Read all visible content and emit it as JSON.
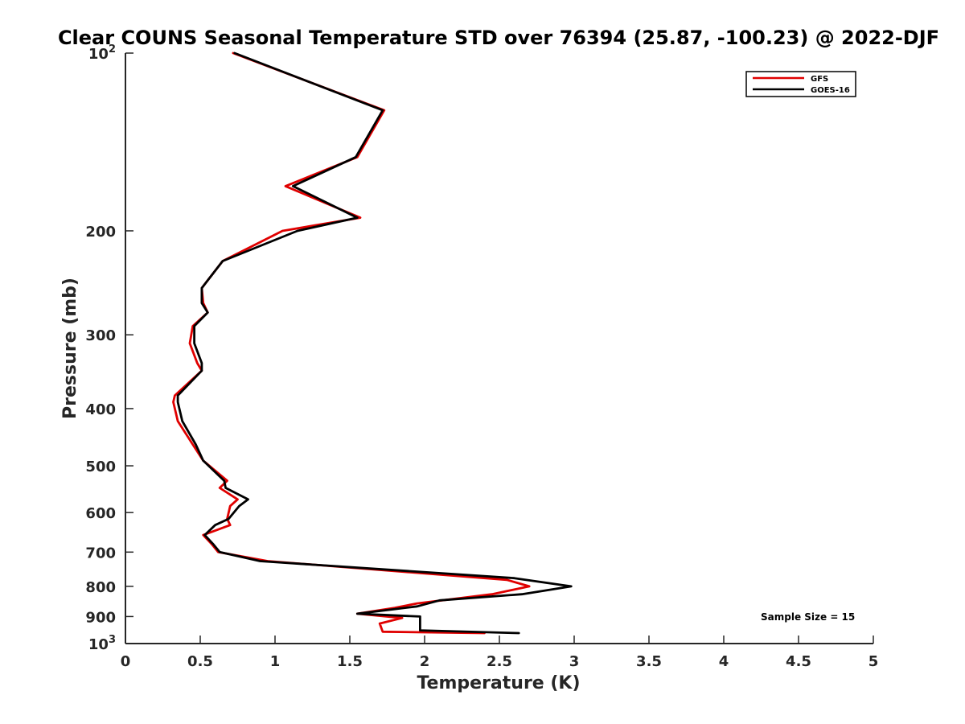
{
  "chart_data": {
    "type": "line",
    "title": "Clear COUNS Seasonal Temperature STD over 76394 (25.87, -100.23) @ 2022-DJF",
    "xlabel": "Temperature (K)",
    "ylabel": "Pressure (mb)",
    "xlim": [
      0,
      5
    ],
    "ylim": [
      100,
      1000
    ],
    "y_scale": "log",
    "y_reversed": true,
    "grid": false,
    "legend_position": "top-right",
    "x_ticks": [
      0,
      0.5,
      1,
      1.5,
      2,
      2.5,
      3,
      3.5,
      4,
      4.5,
      5
    ],
    "x_tick_labels": [
      "0",
      "0.5",
      "1",
      "1.5",
      "2",
      "2.5",
      "3",
      "3.5",
      "4",
      "4.5",
      "5"
    ],
    "y_ticks": [
      100,
      200,
      300,
      400,
      500,
      600,
      700,
      800,
      900,
      1000
    ],
    "y_tick_labels": [
      {
        "base": "10",
        "exp": "2"
      },
      {
        "base": "200",
        "exp": ""
      },
      {
        "base": "300",
        "exp": ""
      },
      {
        "base": "400",
        "exp": ""
      },
      {
        "base": "500",
        "exp": ""
      },
      {
        "base": "600",
        "exp": ""
      },
      {
        "base": "700",
        "exp": ""
      },
      {
        "base": "800",
        "exp": ""
      },
      {
        "base": "900",
        "exp": ""
      },
      {
        "base": "10",
        "exp": "3"
      }
    ],
    "series": [
      {
        "name": "GFS",
        "color": "#e00000",
        "points": [
          [
            0.72,
            100
          ],
          [
            1.73,
            125
          ],
          [
            1.55,
            150
          ],
          [
            1.07,
            168
          ],
          [
            1.57,
            190
          ],
          [
            1.05,
            200
          ],
          [
            0.65,
            225
          ],
          [
            0.51,
            250
          ],
          [
            0.52,
            265
          ],
          [
            0.55,
            275
          ],
          [
            0.45,
            290
          ],
          [
            0.43,
            310
          ],
          [
            0.48,
            335
          ],
          [
            0.51,
            345
          ],
          [
            0.33,
            380
          ],
          [
            0.32,
            390
          ],
          [
            0.35,
            420
          ],
          [
            0.45,
            460
          ],
          [
            0.52,
            490
          ],
          [
            0.68,
            530
          ],
          [
            0.63,
            545
          ],
          [
            0.75,
            570
          ],
          [
            0.7,
            585
          ],
          [
            0.68,
            615
          ],
          [
            0.7,
            630
          ],
          [
            0.52,
            655
          ],
          [
            0.58,
            680
          ],
          [
            0.62,
            700
          ],
          [
            0.95,
            725
          ],
          [
            2.55,
            780
          ],
          [
            2.7,
            800
          ],
          [
            2.45,
            825
          ],
          [
            1.95,
            855
          ],
          [
            1.8,
            870
          ],
          [
            1.55,
            890
          ],
          [
            1.85,
            905
          ],
          [
            1.7,
            925
          ],
          [
            1.72,
            955
          ],
          [
            2.4,
            960
          ]
        ]
      },
      {
        "name": "GOES-16",
        "color": "#000000",
        "points": [
          [
            0.73,
            100
          ],
          [
            1.72,
            125
          ],
          [
            1.54,
            150
          ],
          [
            1.12,
            168
          ],
          [
            1.55,
            190
          ],
          [
            1.15,
            200
          ],
          [
            0.65,
            225
          ],
          [
            0.51,
            250
          ],
          [
            0.51,
            265
          ],
          [
            0.55,
            275
          ],
          [
            0.46,
            290
          ],
          [
            0.46,
            310
          ],
          [
            0.51,
            335
          ],
          [
            0.51,
            345
          ],
          [
            0.35,
            380
          ],
          [
            0.35,
            390
          ],
          [
            0.38,
            420
          ],
          [
            0.47,
            460
          ],
          [
            0.52,
            490
          ],
          [
            0.66,
            530
          ],
          [
            0.67,
            545
          ],
          [
            0.82,
            570
          ],
          [
            0.76,
            585
          ],
          [
            0.69,
            615
          ],
          [
            0.6,
            630
          ],
          [
            0.53,
            655
          ],
          [
            0.59,
            680
          ],
          [
            0.63,
            700
          ],
          [
            0.9,
            725
          ],
          [
            2.6,
            775
          ],
          [
            2.98,
            800
          ],
          [
            2.65,
            825
          ],
          [
            2.1,
            845
          ],
          [
            1.95,
            865
          ],
          [
            1.55,
            890
          ],
          [
            1.97,
            900
          ],
          [
            1.97,
            950
          ],
          [
            2.63,
            960
          ]
        ]
      }
    ],
    "annotation": "Sample Size = 15"
  }
}
